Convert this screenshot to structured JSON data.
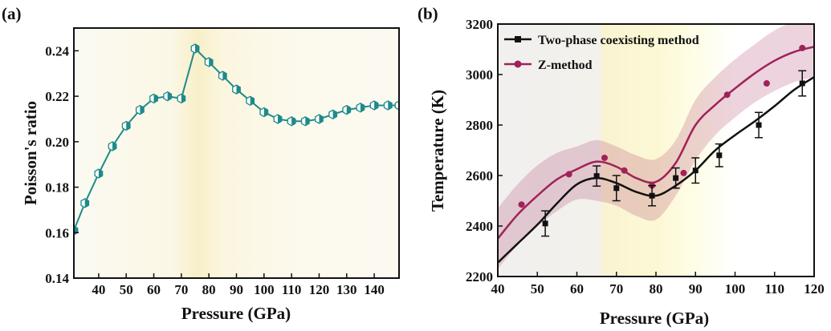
{
  "chart_data": [
    {
      "panel_label": "(a)",
      "type": "line",
      "xlabel": "Pressure (GPa)",
      "ylabel": "Poisson's ratio",
      "xlim": [
        31,
        149
      ],
      "ylim": [
        0.14,
        0.25
      ],
      "xticks": [
        40,
        50,
        60,
        70,
        80,
        90,
        100,
        110,
        120,
        130,
        140
      ],
      "xtick_labels": [
        "40",
        "50",
        "60",
        "70",
        "80",
        "90",
        "100",
        "110",
        "120",
        "130",
        "140"
      ],
      "yticks": [
        0.14,
        0.16,
        0.18,
        0.2,
        0.22,
        0.24
      ],
      "ytick_labels": [
        "0.14",
        "0.16",
        "0.18",
        "0.20",
        "0.22",
        "0.24"
      ],
      "background_gradient": "yellow band centered near 76 GPa",
      "series": [
        {
          "color": "#1f8a8a",
          "marker": "half-filled hexagon",
          "x": [
            31,
            35,
            40,
            45,
            50,
            55,
            60,
            65,
            70,
            75,
            80,
            85,
            90,
            95,
            100,
            105,
            110,
            115,
            120,
            125,
            130,
            135,
            140,
            145,
            149
          ],
          "y": [
            0.161,
            0.173,
            0.186,
            0.198,
            0.207,
            0.214,
            0.219,
            0.22,
            0.219,
            0.241,
            0.235,
            0.229,
            0.223,
            0.218,
            0.213,
            0.21,
            0.209,
            0.209,
            0.21,
            0.212,
            0.214,
            0.215,
            0.216,
            0.216,
            0.216
          ]
        }
      ]
    },
    {
      "panel_label": "(b)",
      "type": "line",
      "xlabel": "Pressure (GPa)",
      "ylabel": "Temperature (K)",
      "xlim": [
        40,
        120
      ],
      "ylim": [
        2200,
        3200
      ],
      "xticks": [
        40,
        50,
        60,
        70,
        80,
        90,
        100,
        110,
        120
      ],
      "xtick_labels": [
        "40",
        "50",
        "60",
        "70",
        "80",
        "90",
        "100",
        "110",
        "120"
      ],
      "yticks": [
        2200,
        2400,
        2600,
        2800,
        3000,
        3200
      ],
      "ytick_labels": [
        "2200",
        "2400",
        "2600",
        "2800",
        "3000",
        "3200"
      ],
      "legend_position": "top-left",
      "background_regions": "gray below 66 GPa, yellow band 66-90 GPa",
      "series": [
        {
          "name": "Two-phase coexisting method",
          "color": "#111111",
          "marker": "square",
          "points_x": [
            52,
            65,
            70,
            79,
            85,
            90,
            96,
            106,
            117
          ],
          "points_y": [
            2410,
            2598,
            2550,
            2520,
            2590,
            2620,
            2680,
            2800,
            2965
          ],
          "error": [
            50,
            40,
            50,
            40,
            40,
            50,
            45,
            50,
            50
          ],
          "fit_x": [
            40,
            45,
            50,
            55,
            60,
            65,
            70,
            75,
            80,
            85,
            90,
            95,
            100,
            105,
            110,
            115,
            120
          ],
          "fit_y": [
            2255,
            2330,
            2405,
            2490,
            2565,
            2590,
            2570,
            2535,
            2520,
            2560,
            2620,
            2700,
            2760,
            2815,
            2875,
            2940,
            2990
          ]
        },
        {
          "name": "Z-method",
          "color": "#a0225a",
          "marker": "circle",
          "points_x": [
            46,
            58,
            67,
            72,
            79,
            87,
            98,
            108,
            117
          ],
          "points_y": [
            2485,
            2605,
            2670,
            2620,
            2560,
            2610,
            2920,
            2965,
            3105
          ],
          "fit_x": [
            40,
            45,
            50,
            55,
            60,
            65,
            70,
            75,
            80,
            85,
            90,
            95,
            100,
            105,
            110,
            115,
            120
          ],
          "fit_y": [
            2350,
            2445,
            2520,
            2585,
            2625,
            2655,
            2635,
            2590,
            2575,
            2650,
            2800,
            2880,
            2945,
            3005,
            3055,
            3090,
            3110
          ],
          "band_upper": [
            2470,
            2565,
            2640,
            2690,
            2715,
            2740,
            2715,
            2680,
            2665,
            2740,
            2900,
            2990,
            3060,
            3120,
            3175,
            3210,
            3230
          ],
          "band_lower": [
            2230,
            2325,
            2400,
            2460,
            2505,
            2500,
            2480,
            2440,
            2425,
            2520,
            2660,
            2760,
            2830,
            2890,
            2935,
            2970,
            2990
          ]
        }
      ]
    }
  ]
}
